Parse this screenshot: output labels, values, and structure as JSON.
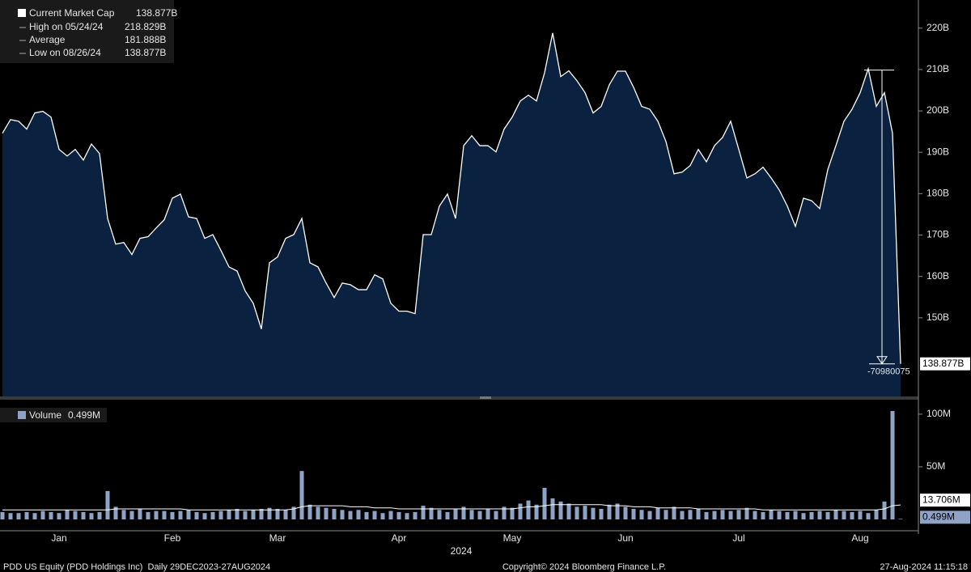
{
  "chart_data": [
    {
      "type": "area",
      "series": [
        {
          "name": "Current Market Cap",
          "last_label": "138.877B",
          "color": "#ffffff",
          "fill": "#0a2140",
          "values": [
            194.6,
            197.9,
            197.5,
            195.6,
            199.5,
            199.9,
            198.5,
            190.7,
            189.1,
            190.7,
            188.1,
            192.0,
            189.7,
            174.0,
            167.8,
            168.2,
            165.3,
            169.2,
            169.6,
            171.7,
            173.7,
            178.9,
            179.9,
            174.4,
            174.0,
            169.2,
            170.1,
            166.3,
            162.3,
            161.3,
            156.5,
            153.5,
            147.3,
            163.3,
            164.7,
            169.2,
            170.1,
            174.0,
            163.3,
            162.3,
            158.4,
            154.9,
            158.4,
            158.0,
            156.8,
            156.8,
            160.4,
            159.4,
            153.5,
            151.6,
            151.6,
            151.0,
            170.1,
            170.1,
            177.0,
            179.9,
            174.0,
            191.6,
            194.0,
            191.6,
            191.6,
            190.1,
            195.6,
            198.5,
            202.4,
            203.8,
            202.4,
            209.2,
            218.829,
            208.3,
            209.7,
            207.3,
            204.4,
            199.5,
            201.1,
            206.3,
            209.6,
            209.6,
            205.7,
            201.1,
            200.4,
            197.5,
            192.6,
            184.8,
            185.2,
            186.8,
            190.7,
            187.7,
            191.6,
            193.6,
            197.5,
            190.7,
            183.8,
            184.8,
            186.4,
            183.8,
            180.9,
            177.0,
            172.1,
            178.9,
            178.3,
            176.4,
            185.8,
            191.6,
            197.5,
            200.4,
            204.4,
            210.2,
            201.1,
            204.4,
            194.6,
            138.877
          ]
        }
      ],
      "stats": [
        {
          "name": "High on 05/24/24",
          "text": "218.829B"
        },
        {
          "name": "Average",
          "text": "181.888B"
        },
        {
          "name": "Low on 08/26/24",
          "text": "138.877B"
        }
      ],
      "categories": [
        null,
        null,
        null,
        null,
        null,
        null,
        null,
        "Jan",
        null,
        null,
        null,
        null,
        null,
        null,
        null,
        null,
        null,
        null,
        null,
        null,
        null,
        "Feb",
        null,
        null,
        null,
        null,
        null,
        null,
        null,
        null,
        null,
        null,
        null,
        null,
        "Mar",
        null,
        null,
        null,
        null,
        null,
        null,
        null,
        null,
        null,
        null,
        null,
        null,
        null,
        null,
        "Apr",
        null,
        null,
        null,
        null,
        null,
        null,
        null,
        null,
        null,
        null,
        null,
        null,
        null,
        "May",
        null,
        null,
        null,
        null,
        null,
        null,
        null,
        null,
        null,
        null,
        null,
        null,
        null,
        "Jun",
        null,
        null,
        null,
        null,
        null,
        null,
        null,
        null,
        null,
        null,
        null,
        null,
        null,
        "Jul",
        null,
        null,
        null,
        null,
        null,
        null,
        null,
        null,
        null,
        null,
        null,
        null,
        null,
        null,
        "Aug",
        null,
        null,
        null,
        null,
        null
      ],
      "x_label": "2024",
      "drawdown": {
        "label": "-70980075",
        "from": 209.857,
        "to": 138.877
      },
      "ylim": [
        131,
        226.8
      ],
      "yticks": [
        {
          "value": 150,
          "label": "150B"
        },
        {
          "value": 160,
          "label": "160B"
        },
        {
          "value": 170,
          "label": "170B"
        },
        {
          "value": 180,
          "label": "180B"
        },
        {
          "value": 190,
          "label": "190B"
        },
        {
          "value": 200,
          "label": "200B"
        },
        {
          "value": 210,
          "label": "210B"
        },
        {
          "value": 220,
          "label": "220B"
        }
      ]
    },
    {
      "type": "bar",
      "series": [
        {
          "name": "Volume",
          "last_label": "0.499M",
          "color": "#8ea3c6",
          "values": [
            7,
            6,
            6,
            7,
            6,
            8,
            7,
            6,
            9,
            8,
            7,
            6,
            7,
            27,
            12,
            9,
            8,
            10,
            7,
            8,
            8,
            7,
            8,
            9,
            7,
            6,
            7,
            8,
            9,
            10,
            8,
            9,
            10,
            11,
            10,
            9,
            12,
            46,
            14,
            12,
            11,
            10,
            9,
            8,
            9,
            7,
            8,
            6,
            8,
            7,
            6,
            7,
            13,
            11,
            9,
            7,
            10,
            12,
            9,
            8,
            10,
            8,
            12,
            11,
            15,
            18,
            14,
            30,
            20,
            17,
            15,
            12,
            13,
            11,
            10,
            14,
            15,
            12,
            10,
            9,
            8,
            11,
            9,
            12,
            8,
            9,
            10,
            7,
            8,
            9,
            8,
            9,
            11,
            8,
            7,
            9,
            8,
            7,
            8,
            6,
            7,
            8,
            7,
            9,
            8,
            7,
            8,
            6,
            9,
            17,
            103,
            0.499
          ]
        },
        {
          "style": "line",
          "last_label": "13.706M",
          "color": "#ffffff",
          "values": [
            9,
            9,
            9,
            9,
            9,
            9,
            9,
            9,
            9,
            9,
            9,
            9,
            9,
            9,
            10,
            10,
            10,
            10,
            10,
            10,
            10,
            10,
            10,
            9,
            9,
            9,
            9,
            9,
            9,
            9,
            9,
            9,
            9,
            9,
            9,
            9,
            10,
            12,
            13,
            13,
            13,
            13,
            13,
            12,
            12,
            12,
            11,
            11,
            11,
            10,
            10,
            10,
            10,
            10,
            10,
            10,
            10,
            10,
            10,
            10,
            10,
            10,
            10,
            10,
            11,
            12,
            12,
            13,
            14,
            14,
            14,
            14,
            14,
            14,
            14,
            13,
            13,
            13,
            12,
            12,
            12,
            11,
            11,
            11,
            11,
            11,
            10,
            10,
            10,
            10,
            10,
            10,
            10,
            10,
            9,
            9,
            9,
            9,
            9,
            9,
            9,
            9,
            9,
            9,
            9,
            9,
            9,
            9,
            9,
            10,
            13,
            13.706
          ]
        }
      ],
      "ylim": [
        0,
        113
      ],
      "yticks": [
        {
          "value": 50,
          "label": "50M"
        },
        {
          "value": 100,
          "label": "100M"
        }
      ]
    }
  ],
  "footer": {
    "left": "PDD US Equity (PDD Holdings Inc)  Daily 29DEC2023-27AUG2024",
    "center": "Copyright© 2024 Bloomberg Finance L.P.",
    "right": "27-Aug-2024 11:15:18"
  }
}
